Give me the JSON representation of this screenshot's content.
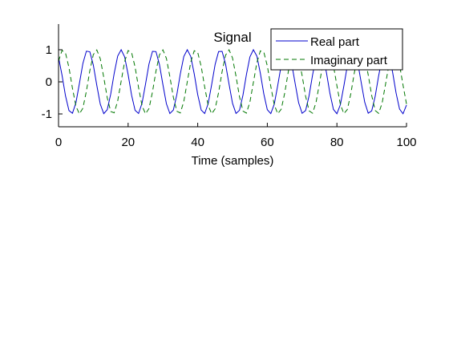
{
  "chart_data": {
    "type": "line",
    "title": "Signal",
    "xlabel": "Time (samples)",
    "ylabel": "",
    "xlim": [
      0,
      100
    ],
    "ylim": [
      -1.4,
      1.8
    ],
    "xticks": [
      0,
      20,
      40,
      60,
      80,
      100
    ],
    "yticks": [
      -1,
      0,
      1
    ],
    "grid": false,
    "legend_position": "top-right",
    "signal": {
      "frequency_cycles_per_sample": 0.1051,
      "phase_rad": 0.7,
      "amplitude": 1
    },
    "series": [
      {
        "name": "Real part",
        "function": "cos",
        "color": "#0000cc",
        "dash": "solid"
      },
      {
        "name": "Imaginary part",
        "function": "sin",
        "color": "#007700",
        "dash": "dashed"
      }
    ]
  }
}
